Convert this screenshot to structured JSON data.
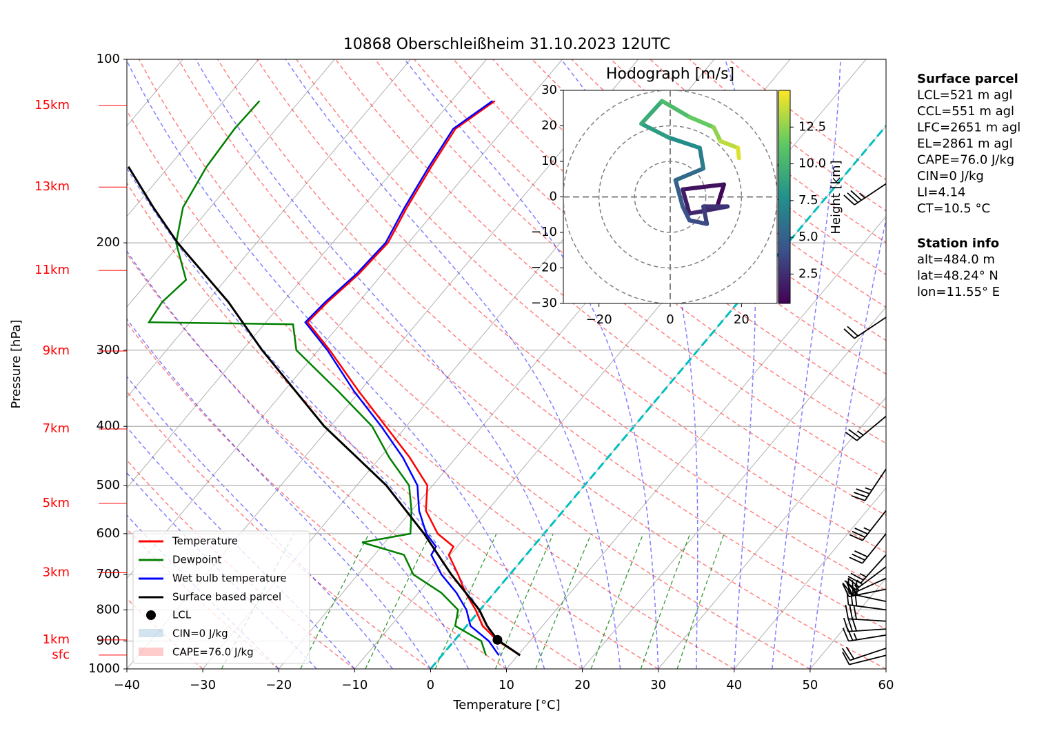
{
  "chart_data": [
    {
      "type": "skewt",
      "title": "10868 Oberschleißheim 31.10.2023 12UTC",
      "xlabel": "Temperature [°C]",
      "ylabel": "Pressure [hPa]",
      "xlim": [
        -40,
        60
      ],
      "ylim": [
        1000,
        100
      ],
      "log_scale": true,
      "grid": true,
      "xticks": [
        {
          "value": -40,
          "label": "−40"
        },
        {
          "value": -30,
          "label": "−30"
        },
        {
          "value": -20,
          "label": "−20"
        },
        {
          "value": -10,
          "label": "−10"
        },
        0,
        10,
        20,
        30,
        40,
        50,
        60
      ],
      "yticks": [
        100,
        200,
        300,
        400,
        500,
        600,
        700,
        800,
        900,
        1000
      ],
      "height_ticks": [
        {
          "label": "15km",
          "pressure": 119
        },
        {
          "label": "13km",
          "pressure": 162
        },
        {
          "label": "11km",
          "pressure": 222
        },
        {
          "label": "9km",
          "pressure": 301
        },
        {
          "label": "7km",
          "pressure": 404
        },
        {
          "label": "5km",
          "pressure": 535
        },
        {
          "label": "3km",
          "pressure": 695
        },
        {
          "label": "1km",
          "pressure": 896
        },
        {
          "label": "sfc",
          "pressure": 949
        }
      ],
      "series": [
        {
          "name": "Temperature",
          "color": "#ff0000",
          "pressure": [
            950,
            900,
            850,
            800,
            750,
            700,
            650,
            630,
            600,
            550,
            500,
            450,
            400,
            350,
            300,
            270,
            250,
            225,
            200,
            175,
            150,
            130,
            117
          ],
          "values": [
            10.3,
            5.8,
            2.1,
            -0.6,
            -3.8,
            -6.8,
            -10.2,
            -10.5,
            -14.0,
            -18.1,
            -20.7,
            -26.1,
            -32.7,
            -40.2,
            -48.5,
            -54.5,
            -54.1,
            -53.1,
            -52.7,
            -54.1,
            -55.4,
            -56.4,
            -54.3
          ]
        },
        {
          "name": "Dewpoint",
          "color": "#008000",
          "pressure": [
            950,
            900,
            850,
            800,
            750,
            700,
            650,
            620,
            600,
            550,
            500,
            450,
            400,
            350,
            300,
            272,
            270,
            250,
            230,
            200,
            175,
            150,
            130,
            117
          ],
          "values": [
            5.8,
            3.6,
            -1.5,
            -2.9,
            -7.0,
            -12.7,
            -16.1,
            -23.0,
            -17.6,
            -20.0,
            -23.1,
            -28.8,
            -34.5,
            -42.9,
            -52.9,
            -56.2,
            -75.4,
            -75.9,
            -75.2,
            -80.6,
            -83.6,
            -85.0,
            -85.5,
            -85.3
          ]
        },
        {
          "name": "Wet bulb temperature",
          "color": "#0000ff",
          "pressure": [
            950,
            900,
            850,
            800,
            750,
            700,
            650,
            630,
            600,
            550,
            500,
            450,
            400,
            350,
            300,
            270,
            250,
            225,
            200,
            175,
            150,
            130,
            117
          ],
          "values": [
            7.5,
            4.6,
            0.5,
            -1.8,
            -5.0,
            -9.0,
            -12.5,
            -12.8,
            -15.5,
            -19.0,
            -22.0,
            -27.0,
            -33.3,
            -40.8,
            -48.8,
            -54.8,
            -54.4,
            -53.4,
            -53.0,
            -54.4,
            -55.7,
            -56.7,
            -54.6
          ]
        },
        {
          "name": "Surface based parcel",
          "color": "#000000",
          "pressure": [
            950,
            896,
            850,
            800,
            700,
            600,
            500,
            400,
            300,
            250,
            200,
            175,
            150
          ],
          "values": [
            10.3,
            5.6,
            2.7,
            -0.1,
            -7.7,
            -15.8,
            -26.1,
            -40.8,
            -57.4,
            -67.2,
            -80.4,
            -87.5,
            -95.3
          ]
        }
      ],
      "lcl": {
        "name": "LCL",
        "pressure": 896,
        "values": 5.6
      },
      "cin_label": "CIN=0 J/kg",
      "cape_label": "CAPE=76.0 J/kg",
      "wind_barbs": {
        "pressure": [
          950,
          925,
          880,
          860,
          835,
          800,
          775,
          740,
          710,
          680,
          650,
          600,
          550,
          470,
          385,
          265,
          160
        ],
        "u": [
          12,
          18,
          25,
          30,
          32,
          30,
          28,
          25,
          22,
          20,
          18,
          20,
          22,
          20,
          18,
          15,
          30
        ],
        "v": [
          3,
          6,
          4,
          2,
          -2,
          -4,
          -6,
          5,
          10,
          15,
          20,
          25,
          28,
          30,
          15,
          10,
          20
        ]
      }
    },
    {
      "type": "hodograph",
      "title": "Hodograph [m/s]",
      "xlim": [
        -30,
        30
      ],
      "ylim": [
        -30,
        30
      ],
      "xticks": [
        {
          "value": -20,
          "label": "−20"
        },
        0,
        20
      ],
      "yticks": [
        {
          "value": -30,
          "label": "−30"
        },
        {
          "value": -20,
          "label": "−20"
        },
        {
          "value": -10,
          "label": "−10"
        },
        0,
        10,
        20,
        30
      ],
      "rings": [
        10,
        20,
        30
      ],
      "u": [
        13.2,
        15.1,
        3.5,
        5.4,
        16.1,
        9.3,
        10.3,
        5.4,
        3.5,
        1.5,
        9.3,
        8.3,
        -0.4,
        -8.1,
        -2.3,
        5.4,
        12.2,
        14.1,
        19.0,
        19.3
      ],
      "v": [
        -2.7,
        3.5,
        2.1,
        -4.7,
        -2.7,
        -2.7,
        -7.6,
        -6.6,
        -2.7,
        4.7,
        8.0,
        13.8,
        16.7,
        20.6,
        27.0,
        22.5,
        19.6,
        15.7,
        13.8,
        10.9
      ],
      "height": [
        0.5,
        1.0,
        1.5,
        2.0,
        2.5,
        3.0,
        3.5,
        4.0,
        4.5,
        5.0,
        6.0,
        7.0,
        8.0,
        9.0,
        10.0,
        11.0,
        12.0,
        13.0,
        14.0,
        14.5
      ],
      "colorbar": {
        "label": "Height [km]",
        "lim": [
          0.5,
          15.0
        ],
        "ticks": [
          2.5,
          {
            "value": 5,
            "label": "5.0"
          },
          7.5,
          {
            "value": 10,
            "label": "10.0"
          },
          12.5
        ]
      }
    }
  ],
  "info": {
    "surface_parcel": {
      "title": "Surface parcel",
      "lines": [
        "LCL=521 m agl",
        "CCL=551 m agl",
        "LFC=2651 m agl",
        "EL=2861 m agl",
        "CAPE=76.0 J/kg",
        "CIN=0 J/kg",
        "LI=4.14",
        "CT=10.5 °C"
      ]
    },
    "station_info": {
      "title": "Station info",
      "lines": [
        "alt=484.0 m",
        "lat=48.24° N",
        "lon=11.55° E"
      ]
    }
  }
}
